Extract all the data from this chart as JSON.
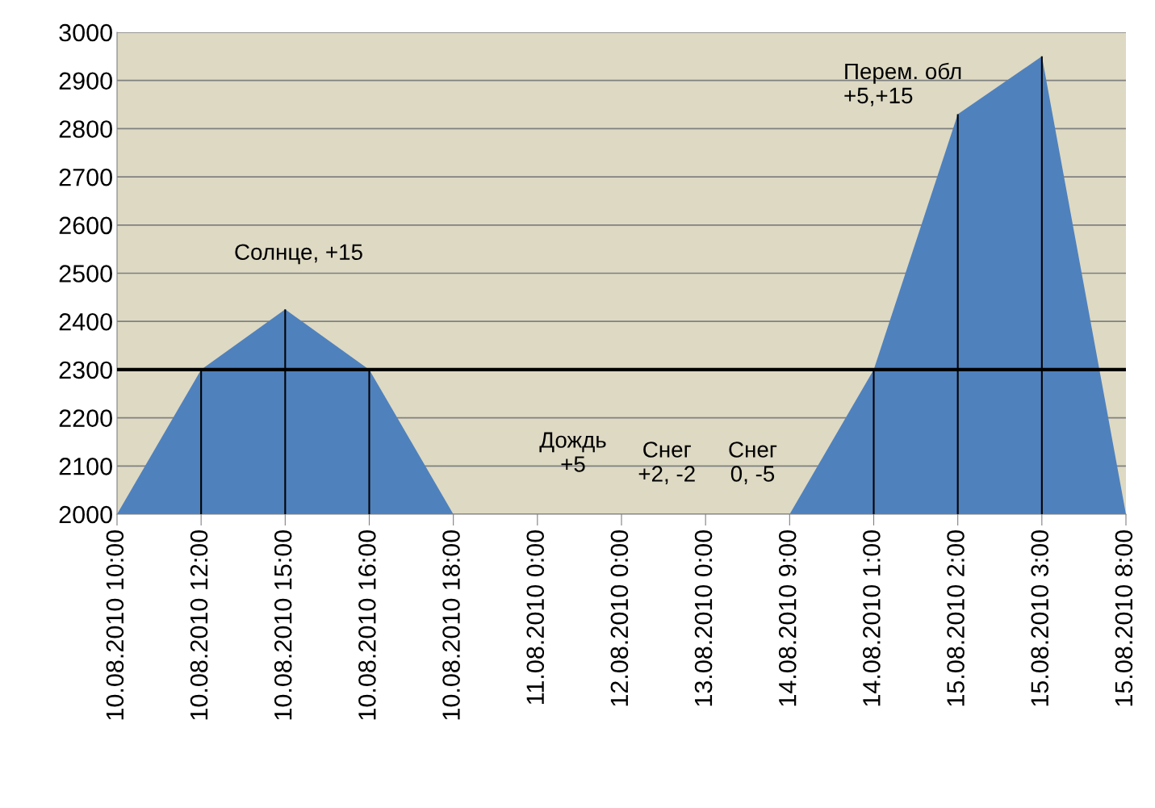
{
  "chart_data": {
    "type": "area",
    "categories": [
      "10.08.2010 10:00",
      "10.08.2010 12:00",
      "10.08.2010 15:00",
      "10.08.2010 16:00",
      "10.08.2010 18:00",
      "11.08.2010 0:00",
      "12.08.2010 0:00",
      "13.08.2010 0:00",
      "14.08.2010 9:00",
      "14.08.2010 1:00",
      "15.08.2010 2:00",
      "15.08.2010 3:00",
      "15.08.2010 8:00"
    ],
    "series": [
      {
        "color": "#4f81bd",
        "values": [
          2000,
          2300,
          2425,
          2300,
          2000,
          2000,
          2000,
          2000,
          2000,
          2300,
          2830,
          2950,
          2000
        ]
      },
      {
        "type": "bar",
        "color": "#000000",
        "values": [
          null,
          2300,
          2425,
          2300,
          null,
          null,
          null,
          null,
          null,
          2300,
          2830,
          2950,
          null
        ]
      }
    ],
    "ylim": [
      2000,
      3000
    ],
    "yticks": [
      2000,
      2100,
      2200,
      2300,
      2400,
      2500,
      2600,
      2700,
      2800,
      2900,
      3000
    ],
    "grid": "y",
    "ref_lines": [
      {
        "axis": "y",
        "value": 2300,
        "color": "#000000"
      }
    ],
    "annotations": [
      "Солнце, +15",
      "Дождь\n+5",
      "Снег\n+2, -2",
      "Снег\n0, -5",
      "Перем. обл\n+5,+15"
    ]
  }
}
